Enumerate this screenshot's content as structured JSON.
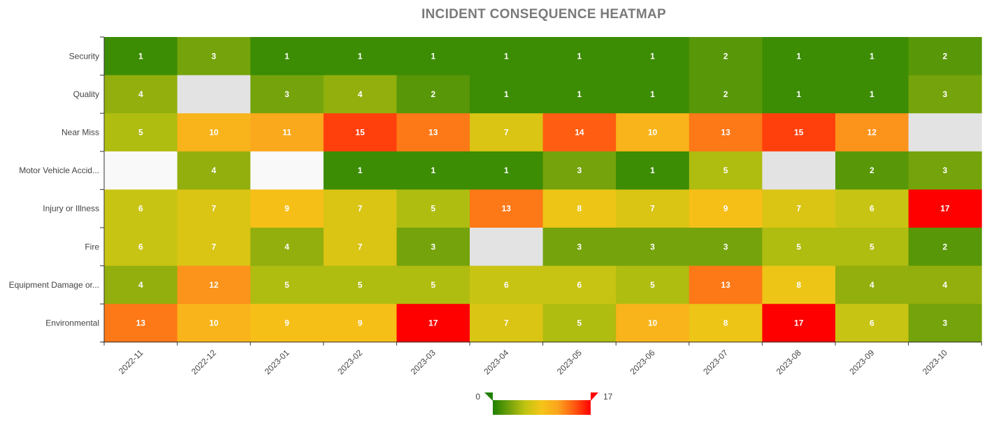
{
  "chart_data": {
    "type": "heatmap",
    "title": "INCIDENT CONSEQUENCE HEATMAP",
    "xlabel": "",
    "ylabel": "",
    "x": [
      "2022-11",
      "2022-12",
      "2023-01",
      "2023-02",
      "2023-03",
      "2023-04",
      "2023-05",
      "2023-06",
      "2023-07",
      "2023-08",
      "2023-09",
      "2023-10"
    ],
    "y": [
      "Security",
      "Quality",
      "Near Miss",
      "Motor Vehicle Accid...",
      "Injury or Illness",
      "Fire",
      "Equipment Damage or...",
      "Environmental"
    ],
    "values": [
      [
        1,
        3,
        1,
        1,
        1,
        1,
        1,
        1,
        2,
        1,
        1,
        2
      ],
      [
        4,
        null,
        3,
        4,
        2,
        1,
        1,
        1,
        2,
        1,
        1,
        3
      ],
      [
        5,
        10,
        11,
        15,
        13,
        7,
        14,
        10,
        13,
        15,
        12,
        null
      ],
      [
        null,
        4,
        null,
        1,
        1,
        1,
        3,
        1,
        5,
        null,
        2,
        3
      ],
      [
        6,
        7,
        9,
        7,
        5,
        13,
        8,
        7,
        9,
        7,
        6,
        17
      ],
      [
        6,
        7,
        4,
        7,
        3,
        null,
        3,
        3,
        3,
        5,
        5,
        2
      ],
      [
        4,
        12,
        5,
        5,
        5,
        6,
        6,
        5,
        13,
        8,
        4,
        4
      ],
      [
        13,
        10,
        9,
        9,
        17,
        7,
        5,
        10,
        8,
        17,
        6,
        3
      ]
    ],
    "empty_colors": [
      [
        null,
        "#e3e3e3",
        null,
        null,
        null,
        null,
        null,
        null,
        null,
        null,
        null,
        null
      ],
      [
        null,
        null,
        null,
        null,
        null,
        null,
        null,
        null,
        null,
        null,
        null,
        "#e3e3e3"
      ],
      [
        "#f9f9f9",
        null,
        "#f9f9f9",
        null,
        null,
        null,
        null,
        null,
        null,
        "#e3e3e3",
        null,
        null
      ],
      [
        null,
        null,
        null,
        null,
        null,
        "#e3e3e3",
        null,
        null,
        null,
        null,
        null,
        null
      ]
    ],
    "empty_rows": [
      1,
      2,
      3,
      5
    ],
    "color_range": {
      "min": 0,
      "max": 17,
      "min_label": "0",
      "max_label": "17",
      "stops": [
        "#1f8000",
        "#70a10b",
        "#c2c412",
        "#f5c517",
        "#fba41d",
        "#ff5a11",
        "#ff0000"
      ]
    },
    "legend": {
      "position": "bottom-center",
      "min_marker_color": "#1f8000",
      "max_marker_color": "#ff0000"
    },
    "grid": false
  }
}
